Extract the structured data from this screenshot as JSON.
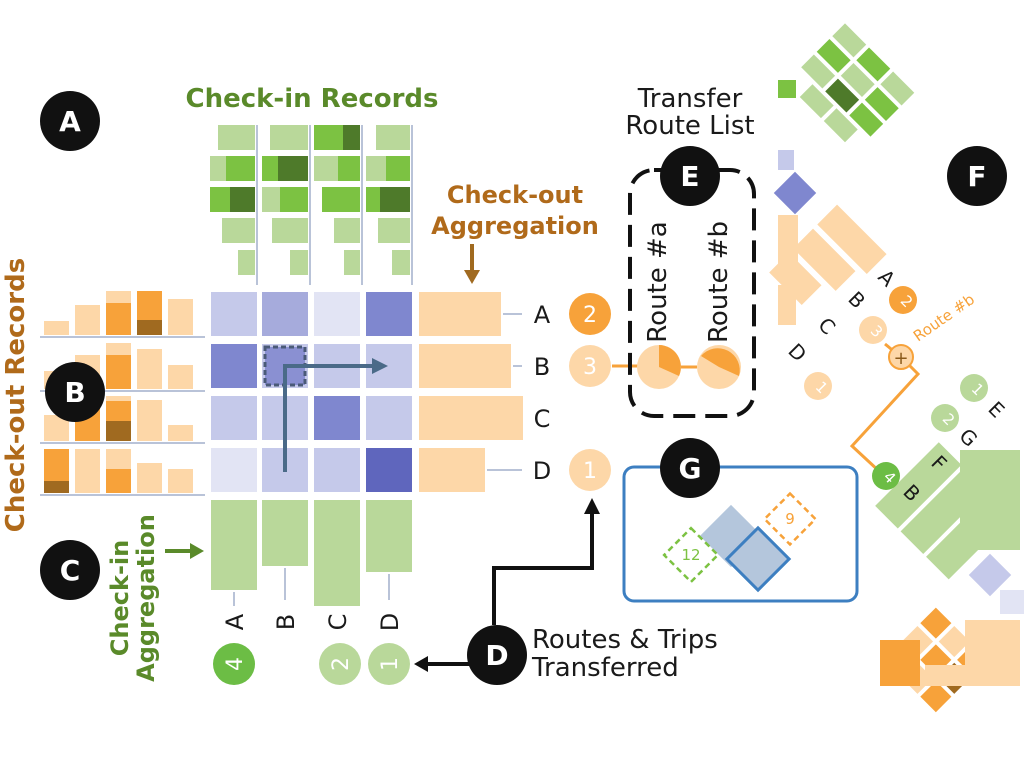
{
  "badges": [
    "A",
    "B",
    "C",
    "D",
    "E",
    "F",
    "G"
  ],
  "titles": {
    "checkin_records": "Check-in Records",
    "checkout_records": "Check-out Records",
    "checkout_aggregation_1": "Check-out",
    "checkout_aggregation_2": "Aggregation",
    "checkin_aggregation_1": "Check-in",
    "checkin_aggregation_2": "Aggregation",
    "transfer_list_1": "Transfer",
    "transfer_list_2": "Route List",
    "routes_trips_1": "Routes & Trips",
    "routes_trips_2": "Transferred"
  },
  "rows": [
    "A",
    "B",
    "C",
    "D"
  ],
  "columns": [
    "A",
    "B",
    "C",
    "D"
  ],
  "row_counts": [
    "2",
    "3",
    "",
    "1"
  ],
  "column_counts": [
    "4",
    "",
    "2",
    "1"
  ],
  "routes": [
    "Route #a",
    "Route #b"
  ],
  "panel_f": {
    "left_labels": [
      "A",
      "B",
      "C",
      "D"
    ],
    "left_counts": [
      "2",
      "3",
      "1"
    ],
    "route_tag": "Route #b",
    "plus": "+",
    "right_labels": [
      "E",
      "G",
      "F",
      "B"
    ],
    "right_counts": [
      "1",
      "2",
      "4"
    ]
  },
  "panel_g": {
    "green_value": "12",
    "orange_value": "9"
  },
  "colors": {
    "green_light": "#b9d89a",
    "green_mid": "#7cc242",
    "green_dark": "#4e7a2a",
    "orange_light": "#fdd7a8",
    "orange_mid": "#f7a23a",
    "orange_dark": "#a06a20",
    "purple_light": "#e2e4f4",
    "purple_mid": "#a6abdc",
    "purple_dark": "#6f77c7",
    "blue_frame": "#3d7fc1"
  }
}
